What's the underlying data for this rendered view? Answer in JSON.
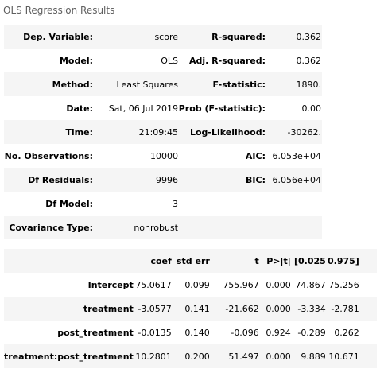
{
  "caption": "OLS Regression Results",
  "summary": {
    "rows": [
      {
        "k1": "Dep. Variable:",
        "v1": "score",
        "k2": "R-squared:",
        "v2": "0.362"
      },
      {
        "k1": "Model:",
        "v1": "OLS",
        "k2": "Adj. R-squared:",
        "v2": "0.362"
      },
      {
        "k1": "Method:",
        "v1": "Least Squares",
        "k2": "F-statistic:",
        "v2": "1890."
      },
      {
        "k1": "Date:",
        "v1": "Sat, 06 Jul 2019",
        "k2": "Prob (F-statistic):",
        "v2": "0.00"
      },
      {
        "k1": "Time:",
        "v1": "21:09:45",
        "k2": "Log-Likelihood:",
        "v2": "-30262."
      },
      {
        "k1": "No. Observations:",
        "v1": "10000",
        "k2": "AIC:",
        "v2": "6.053e+04"
      },
      {
        "k1": "Df Residuals:",
        "v1": "9996",
        "k2": "BIC:",
        "v2": "6.056e+04"
      },
      {
        "k1": "Df Model:",
        "v1": "3",
        "k2": "",
        "v2": ""
      },
      {
        "k1": "Covariance Type:",
        "v1": "nonrobust",
        "k2": "",
        "v2": ""
      }
    ]
  },
  "coefficients": {
    "headers": [
      "",
      "coef",
      "std err",
      "t",
      "P>|t|",
      "[0.025",
      "0.975]"
    ],
    "rows": [
      [
        "Intercept",
        "75.0617",
        "0.099",
        "755.967",
        "0.000",
        "74.867",
        "75.256"
      ],
      [
        "treatment",
        "-3.0577",
        "0.141",
        "-21.662",
        "0.000",
        "-3.334",
        "-2.781"
      ],
      [
        "post_treatment",
        "-0.0135",
        "0.140",
        "-0.096",
        "0.924",
        "-0.289",
        "0.262"
      ],
      [
        "treatment:post_treatment",
        "10.2801",
        "0.200",
        "51.497",
        "0.000",
        "9.889",
        "10.671"
      ]
    ]
  }
}
